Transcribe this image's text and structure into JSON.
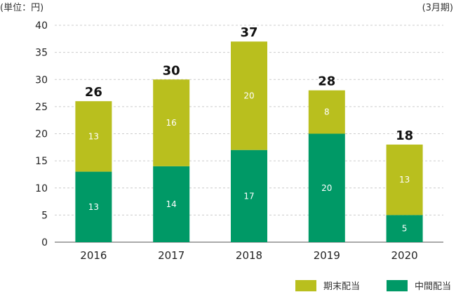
{
  "unit_label": "(単位：円)",
  "period_label": "(3月期)",
  "colors": {
    "year_end": "#b9bf1e",
    "interim": "#009966",
    "grid": "#cccccc",
    "axis": "#555555"
  },
  "legend": [
    {
      "label": "期末配当",
      "color": "#b9bf1e"
    },
    {
      "label": "中間配当",
      "color": "#009966"
    }
  ],
  "chart_data": {
    "type": "bar",
    "stacked": true,
    "categories": [
      "2016",
      "2017",
      "2018",
      "2019",
      "2020"
    ],
    "series": [
      {
        "name": "中間配当",
        "values": [
          13,
          14,
          17,
          20,
          5
        ]
      },
      {
        "name": "期末配当",
        "values": [
          13,
          16,
          20,
          8,
          13
        ]
      }
    ],
    "totals": [
      26,
      30,
      37,
      28,
      18
    ],
    "ylim": [
      0,
      40
    ],
    "yticks": [
      0,
      5,
      10,
      15,
      20,
      25,
      30,
      35,
      40
    ],
    "grid": "horizontal-dashed",
    "legend_position": "bottom-right"
  }
}
